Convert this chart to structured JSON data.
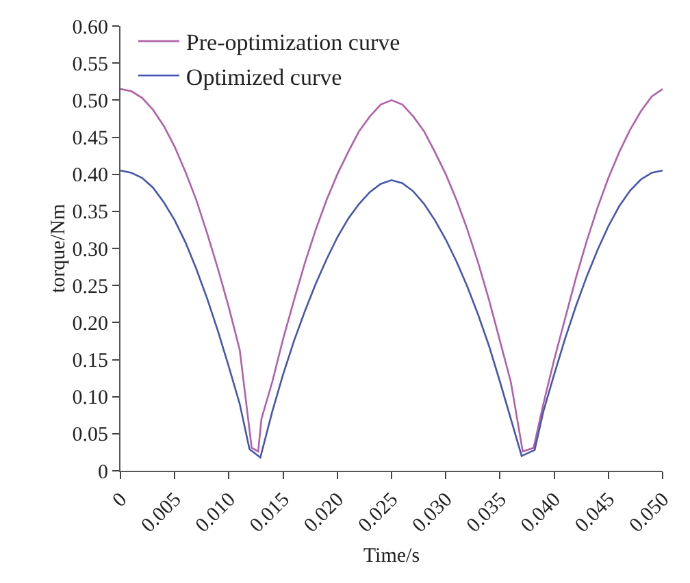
{
  "chart_data": {
    "type": "line",
    "xlabel": "Time/s",
    "ylabel": "torque/Nm",
    "xlim": [
      0,
      0.05
    ],
    "xticks": [
      {
        "value": 0,
        "label": "0"
      },
      0.005,
      {
        "value": 0.01,
        "label": "0.010"
      },
      0.015,
      {
        "value": 0.02,
        "label": "0.020"
      },
      0.025,
      {
        "value": 0.03,
        "label": "0.030"
      },
      0.035,
      {
        "value": 0.04,
        "label": "0.040"
      },
      0.045,
      {
        "value": 0.05,
        "label": "0.050"
      }
    ],
    "ylim": [
      0,
      0.6
    ],
    "yticks": [
      {
        "value": 0,
        "label": "0"
      },
      0.05,
      {
        "value": 0.1,
        "label": "0.10"
      },
      0.15,
      {
        "value": 0.2,
        "label": "0.20"
      },
      0.25,
      {
        "value": 0.3,
        "label": "0.30"
      },
      0.35,
      {
        "value": 0.4,
        "label": "0.40"
      },
      0.45,
      {
        "value": 0.5,
        "label": "0.50"
      },
      0.55,
      {
        "value": 0.6,
        "label": "0.60"
      }
    ],
    "grid": false,
    "legend": "top left",
    "marker": "none",
    "line_style": "solid",
    "series": [
      {
        "name": "Pre-optimization curve",
        "color": "#b35fac",
        "x": [
          0,
          0.001,
          0.002,
          0.003,
          0.004,
          0.005,
          0.006,
          0.007,
          0.008,
          0.009,
          0.01,
          0.011,
          0.0121,
          0.0127,
          0.013,
          0.014,
          0.015,
          0.016,
          0.017,
          0.018,
          0.019,
          0.02,
          0.021,
          0.022,
          0.023,
          0.024,
          0.025,
          0.026,
          0.027,
          0.028,
          0.029,
          0.03,
          0.031,
          0.032,
          0.033,
          0.034,
          0.035,
          0.036,
          0.0371,
          0.0381,
          0.039,
          0.04,
          0.041,
          0.042,
          0.043,
          0.044,
          0.045,
          0.046,
          0.047,
          0.048,
          0.049,
          0.05
        ],
        "values": [
          0.515,
          0.512,
          0.503,
          0.487,
          0.465,
          0.437,
          0.403,
          0.365,
          0.32,
          0.272,
          0.22,
          0.163,
          0.031,
          0.026,
          0.07,
          0.12,
          0.178,
          0.23,
          0.28,
          0.325,
          0.365,
          0.4,
          0.43,
          0.458,
          0.478,
          0.494,
          0.5,
          0.494,
          0.478,
          0.458,
          0.43,
          0.4,
          0.365,
          0.325,
          0.28,
          0.23,
          0.175,
          0.12,
          0.026,
          0.031,
          0.09,
          0.15,
          0.205,
          0.26,
          0.31,
          0.355,
          0.395,
          0.43,
          0.46,
          0.485,
          0.505,
          0.515
        ]
      },
      {
        "name": "Optimized curve",
        "color": "#4656b0",
        "x": [
          0,
          0.001,
          0.002,
          0.003,
          0.004,
          0.005,
          0.006,
          0.007,
          0.008,
          0.009,
          0.01,
          0.011,
          0.0119,
          0.0129,
          0.014,
          0.015,
          0.016,
          0.017,
          0.018,
          0.019,
          0.02,
          0.021,
          0.022,
          0.023,
          0.024,
          0.025,
          0.026,
          0.027,
          0.028,
          0.029,
          0.03,
          0.031,
          0.032,
          0.033,
          0.034,
          0.035,
          0.036,
          0.037,
          0.0382,
          0.039,
          0.04,
          0.041,
          0.042,
          0.043,
          0.044,
          0.045,
          0.046,
          0.047,
          0.048,
          0.049,
          0.05
        ],
        "values": [
          0.405,
          0.402,
          0.395,
          0.382,
          0.362,
          0.338,
          0.308,
          0.272,
          0.232,
          0.188,
          0.14,
          0.09,
          0.029,
          0.018,
          0.08,
          0.13,
          0.175,
          0.215,
          0.252,
          0.285,
          0.315,
          0.34,
          0.36,
          0.376,
          0.387,
          0.392,
          0.388,
          0.377,
          0.36,
          0.338,
          0.312,
          0.282,
          0.248,
          0.21,
          0.168,
          0.12,
          0.07,
          0.02,
          0.028,
          0.08,
          0.13,
          0.178,
          0.222,
          0.262,
          0.298,
          0.33,
          0.357,
          0.378,
          0.393,
          0.402,
          0.405
        ]
      }
    ]
  }
}
